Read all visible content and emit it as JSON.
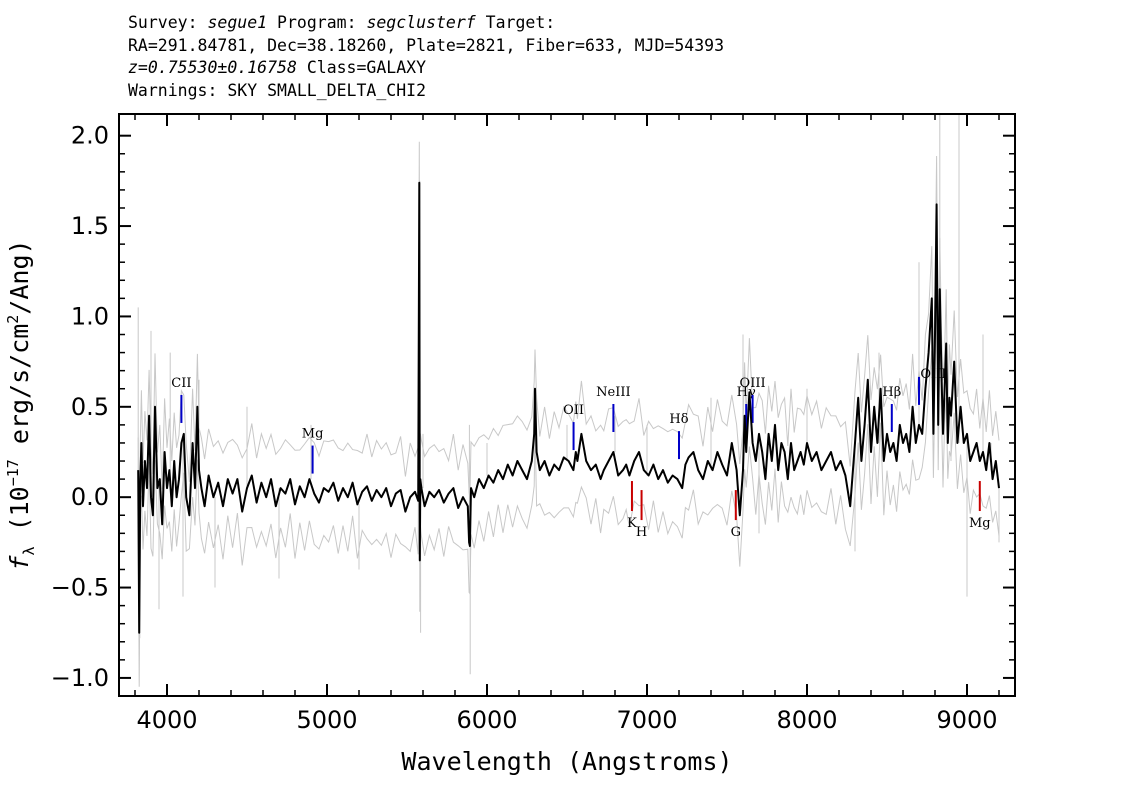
{
  "header": {
    "line1": {
      "survey_label": "Survey: ",
      "survey": "segue1",
      "program_label": " Program: ",
      "program": "segclusterf",
      "target_label": " Target:"
    },
    "line2": "RA=291.84781, Dec=38.18260, Plate=2821, Fiber=633, MJD=54393",
    "line3": {
      "redshift": "z=0.75530±0.16758",
      "class": " Class=GALAXY"
    },
    "line4": "Warnings: SKY SMALL_DELTA_CHI2"
  },
  "chart_data": {
    "type": "line",
    "xlabel": "Wavelength (Angstroms)",
    "ylabel": "f_λ (10^-17 erg/s/cm²/Ang)",
    "xlim": [
      3700,
      9300
    ],
    "ylim": [
      -1.1,
      2.12
    ],
    "x_ticks": [
      4000,
      5000,
      6000,
      7000,
      8000,
      9000
    ],
    "y_ticks": [
      -1.0,
      -0.5,
      0.0,
      0.5,
      1.0,
      1.5,
      2.0
    ],
    "y_tick_labels": [
      "−1.0",
      "−0.5",
      "0.0",
      "0.5",
      "1.0",
      "1.5",
      "2.0"
    ],
    "series": [
      {
        "role": "noise-band",
        "color": "#c8c8c8",
        "points": [
          [
            3820,
            1.05
          ],
          [
            3830,
            -0.78
          ],
          [
            3900,
            0.92
          ],
          [
            3950,
            -0.62
          ],
          [
            4020,
            0.8
          ],
          [
            4100,
            -0.55
          ],
          [
            4200,
            0.65
          ],
          [
            4300,
            -0.5
          ],
          [
            4500,
            0.5
          ],
          [
            4700,
            -0.45
          ],
          [
            4900,
            0.4
          ],
          [
            5200,
            -0.4
          ],
          [
            5580,
            1.75
          ],
          [
            5585,
            -0.75
          ],
          [
            5600,
            0.35
          ],
          [
            5890,
            0.4
          ],
          [
            5895,
            -0.98
          ],
          [
            6000,
            0.3
          ],
          [
            6300,
            0.45
          ],
          [
            6500,
            0.4
          ],
          [
            6800,
            0.45
          ],
          [
            7000,
            0.4
          ],
          [
            7400,
            0.55
          ],
          [
            7600,
            0.9
          ],
          [
            7700,
            -0.2
          ],
          [
            8000,
            0.6
          ],
          [
            8300,
            -0.3
          ],
          [
            8450,
            0.8
          ],
          [
            8700,
            1.3
          ],
          [
            8830,
            2.12
          ],
          [
            8900,
            0.2
          ],
          [
            8950,
            2.12
          ],
          [
            9000,
            -0.55
          ],
          [
            9100,
            0.9
          ],
          [
            9150,
            0.15
          ],
          [
            9200,
            -0.25
          ]
        ],
        "x": [
          3820,
          3826,
          3833,
          3840,
          3850,
          3862,
          3875,
          3888,
          3900,
          3912,
          3925,
          3940,
          3955,
          3970,
          3985,
          4000,
          4015,
          4030,
          4045,
          4060,
          4075,
          4090,
          4105,
          4120,
          4140,
          4160,
          4175,
          4190,
          4200,
          4215,
          4235,
          4260,
          4290,
          4320,
          4350,
          4380,
          4410,
          4440,
          4470,
          4500,
          4530,
          4560,
          4590,
          4620,
          4650,
          4680,
          4710,
          4740,
          4770,
          4800,
          4830,
          4860,
          4890,
          4920,
          4950,
          4980,
          5010,
          5040,
          5070,
          5100,
          5130,
          5160,
          5190,
          5220,
          5250,
          5280,
          5310,
          5340,
          5370,
          5400,
          5430,
          5460,
          5490,
          5520,
          5550,
          5570,
          5577,
          5580,
          5583,
          5590,
          5610,
          5640,
          5670,
          5700,
          5730,
          5760,
          5790,
          5820,
          5850,
          5880,
          5888,
          5893,
          5900,
          5920,
          5950,
          5980,
          6010,
          6040,
          6070,
          6100,
          6130,
          6160,
          6190,
          6220,
          6250,
          6280,
          6295,
          6300,
          6310,
          6330,
          6360,
          6390,
          6420,
          6450,
          6480,
          6510,
          6540,
          6555,
          6565,
          6590,
          6620,
          6650,
          6680,
          6710,
          6730,
          6760,
          6790,
          6820,
          6850,
          6870,
          6890,
          6920,
          6950,
          6980,
          7010,
          7040,
          7070,
          7100,
          7130,
          7160,
          7190,
          7220,
          7240,
          7260,
          7290,
          7320,
          7350,
          7380,
          7410,
          7440,
          7470,
          7500,
          7530,
          7560,
          7580,
          7600,
          7610,
          7620,
          7640,
          7660,
          7680,
          7700,
          7720,
          7740,
          7760,
          7780,
          7800,
          7820,
          7840,
          7860,
          7880,
          7900,
          7920,
          7940,
          7960,
          7980,
          8000,
          8030,
          8060,
          8090,
          8120,
          8150,
          8180,
          8210,
          8240,
          8270,
          8300,
          8320,
          8340,
          8360,
          8380,
          8400,
          8420,
          8440,
          8460,
          8480,
          8500,
          8520,
          8540,
          8560,
          8580,
          8600,
          8620,
          8640,
          8660,
          8680,
          8700,
          8720,
          8740,
          8760,
          8780,
          8790,
          8800,
          8810,
          8820,
          8830,
          8840,
          8850,
          8860,
          8870,
          8880,
          8890,
          8900,
          8920,
          8940,
          8960,
          8980,
          9000,
          9020,
          9040,
          9060,
          9080,
          9100,
          9120,
          9140,
          9160,
          9180,
          9200
        ],
        "y": [
          0.15,
          -0.75,
          0.1,
          0.3,
          -0.05,
          0.2,
          0.05,
          0.45,
          0.0,
          -0.1,
          0.5,
          0.05,
          0.1,
          -0.15,
          0.25,
          0.05,
          0.15,
          -0.05,
          0.2,
          0.0,
          0.1,
          0.3,
          0.35,
          0.0,
          -0.1,
          0.3,
          0.05,
          0.5,
          0.15,
          0.05,
          -0.05,
          0.12,
          0.0,
          0.08,
          -0.05,
          0.1,
          0.02,
          0.1,
          -0.08,
          0.05,
          0.12,
          -0.03,
          0.08,
          0.0,
          0.1,
          -0.05,
          0.05,
          0.02,
          0.1,
          -0.04,
          0.06,
          0.0,
          0.1,
          0.02,
          -0.03,
          0.05,
          0.03,
          0.08,
          -0.02,
          0.05,
          0.0,
          0.08,
          -0.04,
          0.03,
          0.06,
          -0.02,
          0.04,
          0.0,
          0.05,
          -0.05,
          0.02,
          0.04,
          -0.08,
          0.0,
          0.03,
          -0.02,
          1.74,
          -0.35,
          0.1,
          0.05,
          -0.05,
          0.03,
          0.0,
          0.04,
          -0.03,
          0.02,
          0.05,
          -0.06,
          0.0,
          -0.05,
          -0.25,
          -0.27,
          0.05,
          0.0,
          0.1,
          0.05,
          0.12,
          0.08,
          0.15,
          0.1,
          0.18,
          0.12,
          0.2,
          0.15,
          0.1,
          0.2,
          0.35,
          0.6,
          0.25,
          0.15,
          0.2,
          0.12,
          0.18,
          0.15,
          0.22,
          0.2,
          0.15,
          0.25,
          0.2,
          0.35,
          0.2,
          0.15,
          0.18,
          0.1,
          0.15,
          0.2,
          0.25,
          0.12,
          0.15,
          0.18,
          0.12,
          0.2,
          0.25,
          0.15,
          0.12,
          0.18,
          0.1,
          0.15,
          0.08,
          0.12,
          0.1,
          0.05,
          0.18,
          0.22,
          0.25,
          0.15,
          0.1,
          0.2,
          0.15,
          0.25,
          0.18,
          0.12,
          0.3,
          0.15,
          -0.1,
          0.15,
          0.45,
          0.25,
          0.58,
          0.3,
          0.2,
          0.35,
          0.25,
          0.1,
          0.35,
          0.2,
          0.4,
          0.15,
          0.3,
          0.25,
          0.1,
          0.3,
          0.15,
          0.2,
          0.25,
          0.18,
          0.3,
          0.2,
          0.25,
          0.15,
          0.2,
          0.25,
          0.15,
          0.2,
          0.12,
          -0.05,
          0.3,
          0.55,
          0.2,
          0.4,
          0.65,
          0.25,
          0.5,
          0.3,
          0.6,
          0.2,
          0.35,
          0.25,
          0.3,
          0.2,
          0.4,
          0.3,
          0.35,
          0.25,
          0.5,
          0.3,
          0.4,
          0.35,
          0.6,
          0.8,
          1.1,
          0.35,
          0.9,
          1.62,
          0.4,
          1.15,
          0.7,
          0.35,
          0.6,
          0.85,
          0.3,
          0.55,
          0.45,
          0.75,
          0.3,
          0.5,
          0.3,
          0.35,
          0.2,
          0.25,
          0.3,
          0.2,
          0.25,
          0.15,
          0.3,
          0.1,
          0.2,
          0.05
        ]
      }
    ],
    "line_markers": [
      {
        "label": "CII",
        "x": 4090,
        "color": "#0000c8",
        "kind": "emission"
      },
      {
        "label": "Mg",
        "x": 4910,
        "color": "#0000c8",
        "kind": "emission"
      },
      {
        "label": "OII",
        "x": 6541,
        "color": "#0000c8",
        "kind": "emission"
      },
      {
        "label": "NeIII",
        "x": 6790,
        "color": "#0000c8",
        "kind": "emission"
      },
      {
        "label": "Hδ",
        "x": 7200,
        "color": "#0000c8",
        "kind": "emission"
      },
      {
        "label": "Hγ",
        "x": 7620,
        "color": "#0000c8",
        "kind": "emission"
      },
      {
        "label": "OIII",
        "x": 7660,
        "color": "#0000c8",
        "kind": "emission"
      },
      {
        "label": "Hβ",
        "x": 8530,
        "color": "#0000c8",
        "kind": "emission"
      },
      {
        "label": "",
        "x": 8700,
        "color": "#0000c8",
        "kind": "emission"
      },
      {
        "label": "OIII",
        "x": 8790,
        "color": "#0000c8",
        "kind": "emission"
      },
      {
        "label": "K",
        "x": 6906,
        "color": "#c80000",
        "kind": "absorption"
      },
      {
        "label": "H",
        "x": 6966,
        "color": "#c80000",
        "kind": "absorption"
      },
      {
        "label": "G",
        "x": 7555,
        "color": "#c80000",
        "kind": "absorption"
      },
      {
        "label": "Mg",
        "x": 9080,
        "color": "#c80000",
        "kind": "absorption"
      }
    ]
  }
}
